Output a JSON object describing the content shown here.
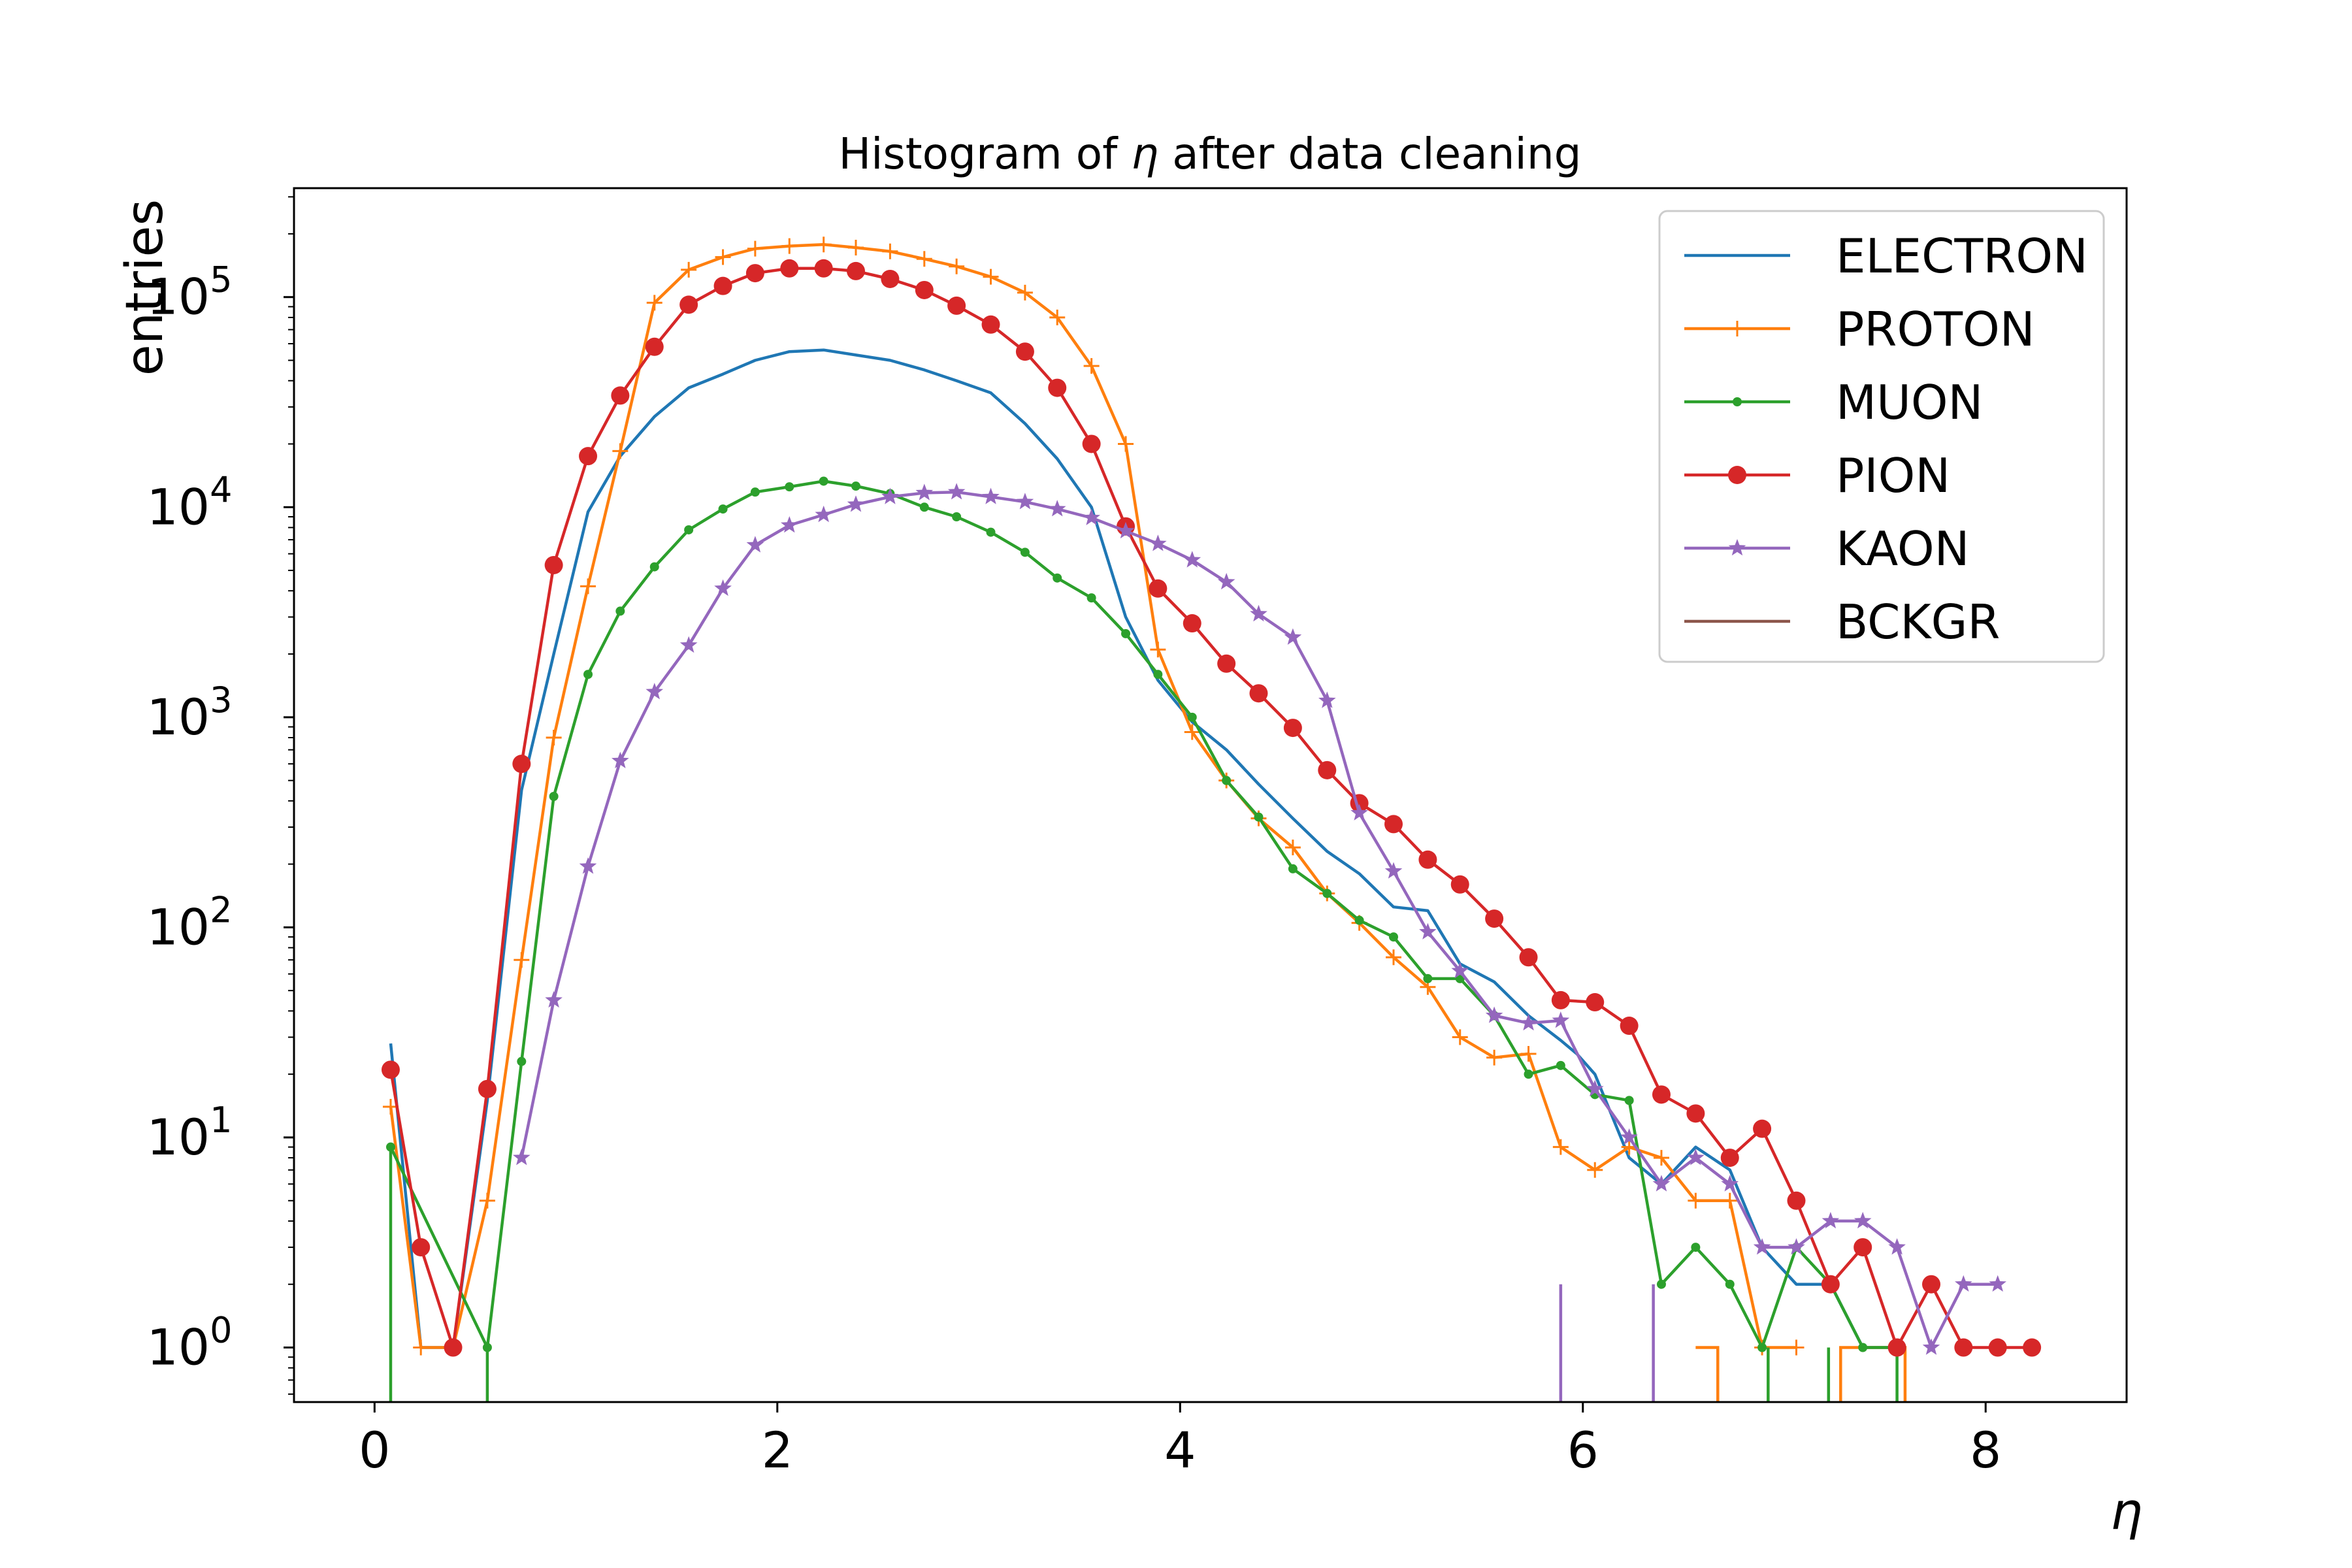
{
  "chart_data": {
    "type": "line",
    "title_prefix": "Histogram of ",
    "title_symbol": "η",
    "title_suffix": " after data cleaning",
    "xlabel": "η",
    "ylabel": "entries",
    "xlim": [
      -0.4,
      8.7
    ],
    "ylim": [
      0.55,
      330000
    ],
    "yscale": "log",
    "grid": false,
    "legend_position": "top-right",
    "x_ticks": [
      {
        "value": 0,
        "label": "0"
      },
      {
        "value": 2,
        "label": "2"
      },
      {
        "value": 4,
        "label": "4"
      },
      {
        "value": 6,
        "label": "6"
      },
      {
        "value": 8,
        "label": "8"
      }
    ],
    "y_ticks": [
      {
        "value": 1,
        "base": "10",
        "exp": "0"
      },
      {
        "value": 10,
        "base": "10",
        "exp": "1"
      },
      {
        "value": 100,
        "base": "10",
        "exp": "2"
      },
      {
        "value": 1000,
        "base": "10",
        "exp": "3"
      },
      {
        "value": 10000,
        "base": "10",
        "exp": "4"
      },
      {
        "value": 100000,
        "base": "10",
        "exp": "5"
      }
    ],
    "series": [
      {
        "name": "ELECTRON",
        "color": "#1f77b4",
        "marker": "none",
        "x": [
          0.08,
          0.23,
          0.39,
          0.56,
          0.73,
          0.89,
          1.06,
          1.22,
          1.39,
          1.56,
          1.73,
          1.89,
          2.06,
          2.23,
          2.39,
          2.56,
          2.73,
          2.89,
          3.06,
          3.23,
          3.39,
          3.56,
          3.73,
          3.89,
          4.06,
          4.23,
          4.39,
          4.56,
          4.73,
          4.89,
          5.06,
          5.23,
          5.39,
          5.56,
          5.73,
          5.89,
          5.97,
          6.06,
          6.23,
          6.39,
          6.56,
          6.73,
          6.89,
          7.06,
          7.23,
          7.39,
          7.56
        ],
        "y": [
          28,
          1,
          1,
          15,
          450,
          2000,
          9500,
          17500,
          27000,
          37000,
          43000,
          50000,
          55000,
          56000,
          53000,
          50000,
          45000,
          40000,
          35000,
          25000,
          17000,
          10000,
          3000,
          1500,
          950,
          700,
          480,
          330,
          230,
          180,
          125,
          120,
          67,
          55,
          38,
          29,
          25,
          20,
          8,
          6,
          9,
          7,
          3,
          2,
          2,
          1,
          1
        ]
      },
      {
        "name": "PROTON",
        "color": "#ff7f0e",
        "marker": "plus",
        "x": [
          0.08,
          0.23,
          0.39,
          0.56,
          0.73,
          0.89,
          1.06,
          1.22,
          1.39,
          1.56,
          1.73,
          1.89,
          2.06,
          2.23,
          2.39,
          2.56,
          2.73,
          2.89,
          3.06,
          3.23,
          3.39,
          3.56,
          3.73,
          3.89,
          4.06,
          4.23,
          4.39,
          4.56,
          4.73,
          4.89,
          5.06,
          5.23,
          5.39,
          5.56,
          5.73,
          5.89,
          6.06,
          6.23,
          6.39,
          6.56,
          6.73,
          6.89,
          7.06,
          7.23,
          7.39,
          7.56
        ],
        "y": [
          14,
          1,
          1,
          5,
          70,
          800,
          4200,
          18500,
          94000,
          135000,
          155000,
          170000,
          175000,
          178000,
          172000,
          165000,
          152000,
          140000,
          125000,
          105000,
          80000,
          47000,
          20000,
          2100,
          850,
          500,
          330,
          240,
          145,
          105,
          72,
          52,
          30,
          24,
          25,
          9,
          7,
          9,
          8,
          5,
          5,
          1,
          1,
          null,
          null,
          null
        ],
        "drop_at": [
          6.67
        ],
        "drop_from": 1
      },
      {
        "name": "MUON",
        "color": "#2ca02c",
        "marker": "dot",
        "x": [
          0.08,
          0.56,
          0.73,
          0.89,
          1.06,
          1.22,
          1.39,
          1.56,
          1.73,
          1.89,
          2.06,
          2.23,
          2.39,
          2.56,
          2.73,
          2.89,
          3.06,
          3.23,
          3.39,
          3.56,
          3.73,
          3.89,
          4.06,
          4.23,
          4.39,
          4.56,
          4.73,
          4.89,
          5.06,
          5.23,
          5.39,
          5.56,
          5.73,
          5.89,
          6.06,
          6.23,
          6.39,
          6.56,
          6.73,
          6.89,
          7.06,
          7.23,
          7.39,
          7.56
        ],
        "y": [
          9,
          1,
          23,
          420,
          1600,
          3200,
          5200,
          7800,
          9800,
          11800,
          12500,
          13300,
          12600,
          11600,
          10000,
          9000,
          7600,
          6100,
          4600,
          3700,
          2500,
          1600,
          1000,
          500,
          335,
          190,
          145,
          108,
          90,
          57,
          57,
          38,
          20,
          22,
          16,
          15,
          2,
          3,
          2,
          1,
          3,
          2,
          1,
          1
        ]
      },
      {
        "name": "PION",
        "color": "#d62728",
        "marker": "circle",
        "x": [
          0.08,
          0.23,
          0.39,
          0.56,
          0.73,
          0.89,
          1.06,
          1.22,
          1.39,
          1.56,
          1.73,
          1.89,
          2.06,
          2.23,
          2.39,
          2.56,
          2.73,
          2.89,
          3.06,
          3.23,
          3.39,
          3.56,
          3.73,
          3.89,
          4.06,
          4.23,
          4.39,
          4.56,
          4.73,
          4.89,
          5.06,
          5.23,
          5.39,
          5.56,
          5.73,
          5.89,
          6.06,
          6.23,
          6.39,
          6.56,
          6.73,
          6.89,
          7.06,
          7.23,
          7.39,
          7.56,
          7.73,
          7.89,
          8.06,
          8.23
        ],
        "y": [
          21,
          3,
          1,
          17,
          600,
          5300,
          17500,
          34000,
          58000,
          92000,
          113000,
          130000,
          137000,
          137000,
          133000,
          122000,
          108000,
          91000,
          74000,
          55000,
          37000,
          20000,
          8100,
          4100,
          2800,
          1800,
          1300,
          890,
          560,
          390,
          310,
          210,
          160,
          110,
          72,
          45,
          44,
          34,
          16,
          13,
          8,
          11,
          5,
          2,
          3,
          1,
          2,
          1,
          1,
          1
        ]
      },
      {
        "name": "KAON",
        "color": "#9467bd",
        "marker": "star",
        "x": [
          0.73,
          0.89,
          1.06,
          1.22,
          1.39,
          1.56,
          1.73,
          1.89,
          2.06,
          2.23,
          2.39,
          2.56,
          2.73,
          2.89,
          3.06,
          3.23,
          3.39,
          3.56,
          3.73,
          3.89,
          4.06,
          4.23,
          4.39,
          4.56,
          4.73,
          4.89,
          5.06,
          5.23,
          5.39,
          5.56,
          5.73,
          5.89,
          6.06,
          6.23,
          6.39,
          6.56,
          6.73,
          6.89,
          7.06,
          7.23,
          7.39,
          7.56,
          7.73,
          7.89,
          8.06
        ],
        "y": [
          8,
          45,
          195,
          620,
          1320,
          2200,
          4100,
          6600,
          8200,
          9200,
          10300,
          11200,
          11700,
          11800,
          11200,
          10600,
          9800,
          8900,
          7700,
          6700,
          5600,
          4400,
          3100,
          2400,
          1200,
          350,
          185,
          95,
          62,
          38,
          35,
          36,
          17,
          10,
          6,
          8,
          6,
          3,
          3,
          4,
          4,
          3,
          1,
          2,
          2
        ],
        "x_extra": [
          5.73,
          5.89,
          6.06,
          6.23,
          6.39,
          6.56,
          6.73,
          6.89,
          7.06,
          7.23,
          7.39
        ],
        "dummy": []
      },
      {
        "name": "BCKGR",
        "color": "#8c564b",
        "marker": "none",
        "x": [],
        "y": []
      }
    ]
  }
}
